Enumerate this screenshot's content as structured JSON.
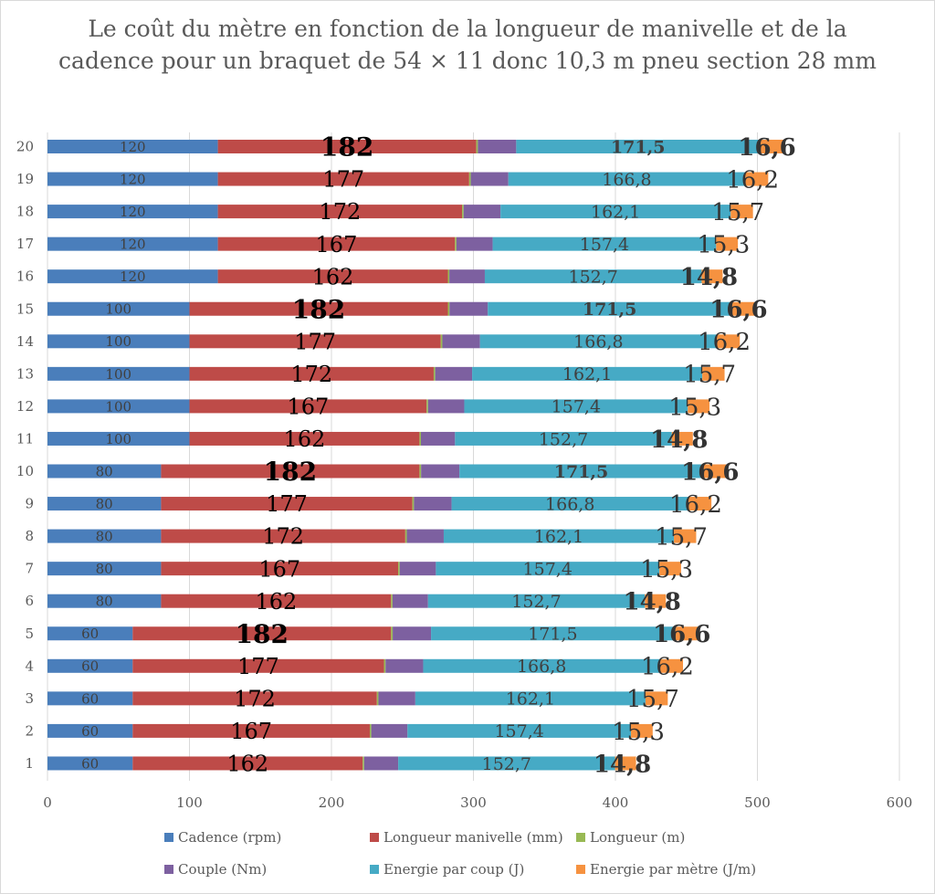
{
  "chart_data": {
    "type": "bar",
    "orientation": "horizontal",
    "stacked": true,
    "title": "Le coût du mètre en fonction de la longueur de manivelle et de la cadence pour un braquet de 54 × 11 donc 10,3 m pneu section 28 mm",
    "categories": [
      "1",
      "2",
      "3",
      "4",
      "5",
      "6",
      "7",
      "8",
      "9",
      "10",
      "11",
      "12",
      "13",
      "14",
      "15",
      "16",
      "17",
      "18",
      "19",
      "20"
    ],
    "xlim": [
      0,
      600
    ],
    "xticks": [
      "0",
      "100",
      "200",
      "300",
      "400",
      "500",
      "600"
    ],
    "grid": "vertical",
    "legend_position": "bottom",
    "series": [
      {
        "name": "Cadence (rpm)",
        "color": "#4a7ebb",
        "values": [
          60,
          60,
          60,
          60,
          60,
          80,
          80,
          80,
          80,
          80,
          100,
          100,
          100,
          100,
          100,
          120,
          120,
          120,
          120,
          120
        ],
        "labels": [
          "60",
          "60",
          "60",
          "60",
          "60",
          "80",
          "80",
          "80",
          "80",
          "80",
          "100",
          "100",
          "100",
          "100",
          "100",
          "120",
          "120",
          "120",
          "120",
          "120"
        ]
      },
      {
        "name": "Longueur manivelle (mm)",
        "color": "#be4b48",
        "values": [
          162,
          167,
          172,
          177,
          182,
          162,
          167,
          172,
          177,
          182,
          162,
          167,
          172,
          177,
          182,
          162,
          167,
          172,
          177,
          182
        ],
        "labels": [
          "162",
          "167",
          "172",
          "177",
          "182",
          "162",
          "167",
          "172",
          "177",
          "182",
          "162",
          "167",
          "172",
          "177",
          "182",
          "162",
          "167",
          "172",
          "177",
          "182"
        ]
      },
      {
        "name": "Longueur (m)",
        "color": "#98b954",
        "values": [
          1.02,
          1.05,
          1.08,
          1.11,
          1.14,
          1.02,
          1.05,
          1.08,
          1.11,
          1.14,
          1.02,
          1.05,
          1.08,
          1.11,
          1.14,
          1.02,
          1.05,
          1.08,
          1.11,
          1.14
        ],
        "labels": []
      },
      {
        "name": "Couple (Nm)",
        "color": "#7d60a0",
        "values": [
          24,
          25.5,
          26,
          26.5,
          27,
          25,
          25.5,
          26,
          26.5,
          27,
          24,
          25.5,
          26,
          26.5,
          27,
          25,
          25.5,
          26,
          26.5,
          27
        ],
        "labels": []
      },
      {
        "name": "Energie par coup (J)",
        "color": "#46aac5",
        "values": [
          152.7,
          157.4,
          162.1,
          166.8,
          171.5,
          152.7,
          157.4,
          162.1,
          166.8,
          171.5,
          152.7,
          157.4,
          162.1,
          166.8,
          171.5,
          152.7,
          157.4,
          162.1,
          166.8,
          171.5
        ],
        "labels": [
          "152,7",
          "157,4",
          "162,1",
          "166,8",
          "171,5",
          "152,7",
          "157,4",
          "162,1",
          "166,8",
          "171,5",
          "152,7",
          "157,4",
          "162,1",
          "166,8",
          "171,5",
          "152,7",
          "157,4",
          "162,1",
          "166,8",
          "171,5"
        ]
      },
      {
        "name": "Energie par mètre (J/m)",
        "color": "#f69240",
        "values": [
          14.8,
          15.3,
          15.7,
          16.2,
          16.6,
          14.8,
          15.3,
          15.7,
          16.2,
          16.6,
          14.8,
          15.3,
          15.7,
          16.2,
          16.6,
          14.8,
          15.3,
          15.7,
          16.2,
          16.6
        ],
        "labels": [
          "14,8",
          "15,3",
          "15,7",
          "16,2",
          "16,6",
          "14,8",
          "15,3",
          "15,7",
          "16,2",
          "16,6",
          "14,8",
          "15,3",
          "15,7",
          "16,2",
          "16,6",
          "14,8",
          "15,3",
          "15,7",
          "16,2",
          "16,6"
        ]
      }
    ]
  }
}
